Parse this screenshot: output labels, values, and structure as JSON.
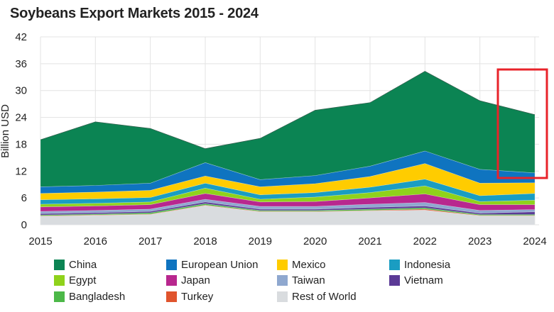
{
  "chart_data": {
    "type": "area",
    "title": "Soybeans Export Markets 2015 - 2024",
    "xlabel": "",
    "ylabel": "Billion USD",
    "ylim": [
      0,
      42
    ],
    "yticks": [
      0,
      6,
      12,
      18,
      24,
      30,
      36,
      42
    ],
    "x": [
      "2015",
      "2016",
      "2017",
      "2018",
      "2019",
      "2020",
      "2021",
      "2022",
      "2023",
      "2024"
    ],
    "stacked": true,
    "grid": true,
    "legend_position": "bottom",
    "series": [
      {
        "name": "Rest of World",
        "color": "#d9dcdf",
        "values": [
          1.9,
          2.1,
          2.3,
          4.3,
          2.9,
          2.9,
          3.1,
          3.3,
          2.0,
          2.0
        ]
      },
      {
        "name": "Turkey",
        "color": "#e0542d",
        "values": [
          0.1,
          0.1,
          0.1,
          0.1,
          0.1,
          0.1,
          0.1,
          0.2,
          0.1,
          0.1
        ]
      },
      {
        "name": "Bangladesh",
        "color": "#4cb848",
        "values": [
          0.2,
          0.2,
          0.3,
          0.3,
          0.2,
          0.2,
          0.3,
          0.3,
          0.2,
          0.2
        ]
      },
      {
        "name": "Vietnam",
        "color": "#5b3a96",
        "values": [
          0.3,
          0.3,
          0.3,
          0.4,
          0.3,
          0.3,
          0.4,
          0.4,
          0.3,
          0.6
        ]
      },
      {
        "name": "Taiwan",
        "color": "#8fa8cf",
        "values": [
          0.5,
          0.5,
          0.5,
          0.6,
          0.6,
          0.6,
          0.7,
          0.8,
          0.6,
          0.5
        ]
      },
      {
        "name": "Japan",
        "color": "#b8278e",
        "values": [
          1.0,
          1.0,
          1.0,
          1.3,
          1.0,
          1.1,
          1.4,
          1.9,
          1.3,
          1.1
        ]
      },
      {
        "name": "Egypt",
        "color": "#8fd21b",
        "values": [
          0.6,
          0.6,
          0.6,
          1.2,
          0.6,
          1.0,
          1.2,
          1.8,
          0.7,
          1.0
        ]
      },
      {
        "name": "Indonesia",
        "color": "#1a9dc2",
        "values": [
          1.0,
          1.0,
          1.0,
          1.1,
          1.0,
          1.0,
          1.2,
          1.5,
          1.3,
          1.5
        ]
      },
      {
        "name": "Mexico",
        "color": "#ffcc00",
        "values": [
          1.4,
          1.5,
          1.6,
          1.6,
          1.8,
          2.0,
          2.4,
          3.5,
          2.8,
          2.4
        ]
      },
      {
        "name": "European Union",
        "color": "#0f74c0",
        "values": [
          1.5,
          1.5,
          1.6,
          3.0,
          1.6,
          1.8,
          2.3,
          2.8,
          3.1,
          2.2
        ]
      },
      {
        "name": "China",
        "color": "#0b8453",
        "values": [
          10.5,
          14.2,
          12.2,
          3.1,
          9.2,
          14.6,
          14.2,
          17.8,
          15.3,
          13.0
        ]
      }
    ],
    "legend_order": [
      "China",
      "European Union",
      "Mexico",
      "Indonesia",
      "Egypt",
      "Japan",
      "Taiwan",
      "Vietnam",
      "Bangladesh",
      "Turkey",
      "Rest of World"
    ]
  }
}
